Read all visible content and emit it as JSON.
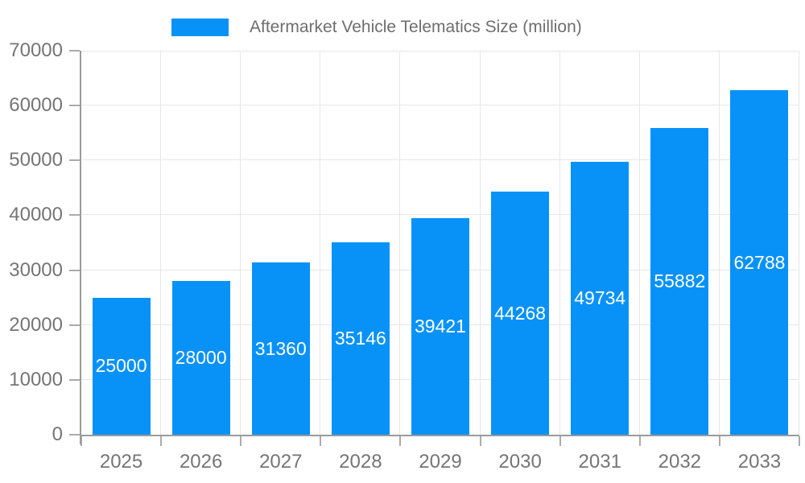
{
  "chart_data": {
    "type": "bar",
    "title": "Aftermarket Vehicle Telematics Size (million)",
    "categories": [
      "2025",
      "2026",
      "2027",
      "2028",
      "2029",
      "2030",
      "2031",
      "2032",
      "2033"
    ],
    "series": [
      {
        "name": "Aftermarket Vehicle Telematics Size (million)",
        "values": [
          25000,
          28000,
          31360,
          35146,
          39421,
          44268,
          49734,
          55882,
          62788
        ]
      }
    ],
    "xlabel": "",
    "ylabel": "",
    "ylim": [
      0,
      70000
    ],
    "y_ticks": [
      0,
      10000,
      20000,
      30000,
      40000,
      50000,
      60000,
      70000
    ],
    "grid": true,
    "legend_position": "top-center",
    "value_labels": "inside-center",
    "colors": {
      "bar": "#0892f8",
      "value_label": "#ffffff",
      "axis_text": "#757575",
      "legend_text": "#6e6e6e",
      "grid": "#e7e7e7",
      "axis_line": "#9a9a9a",
      "tick": "#ababab",
      "background": "#ffffff"
    }
  }
}
